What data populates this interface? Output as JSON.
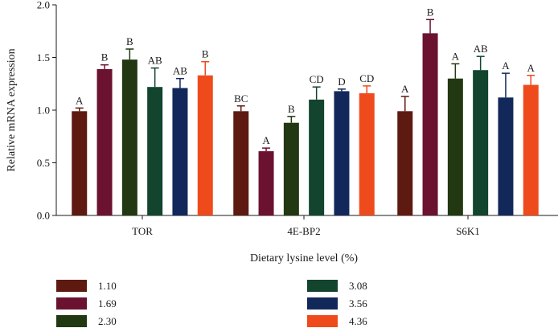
{
  "chart_data": {
    "type": "bar",
    "xlabel": "Dietary lysine level (%)",
    "ylabel": "Relative mRNA expression",
    "ylim": [
      0,
      2.0
    ],
    "yticks": [
      "0.0",
      "0.5",
      "1.0",
      "1.5",
      "2.0"
    ],
    "categories": [
      "TOR",
      "4E-BP2",
      "S6K1"
    ],
    "grid": false,
    "legend_position": "bottom",
    "error_bars": true,
    "series": [
      {
        "name": "1.10",
        "color": "#5e1a10",
        "values": [
          0.99,
          0.99,
          0.99
        ],
        "errors": [
          0.03,
          0.05,
          0.14
        ],
        "labels": [
          "A",
          "BC",
          "A"
        ]
      },
      {
        "name": "1.69",
        "color": "#6b1230",
        "values": [
          1.39,
          0.61,
          1.73
        ],
        "errors": [
          0.04,
          0.03,
          0.13
        ],
        "labels": [
          "B",
          "A",
          "B"
        ]
      },
      {
        "name": "2.30",
        "color": "#223812",
        "values": [
          1.48,
          0.88,
          1.3
        ],
        "errors": [
          0.1,
          0.06,
          0.14
        ],
        "labels": [
          "B",
          "B",
          "A"
        ]
      },
      {
        "name": "3.08",
        "color": "#12442e",
        "values": [
          1.22,
          1.1,
          1.38
        ],
        "errors": [
          0.18,
          0.12,
          0.13
        ],
        "labels": [
          "AB",
          "CD",
          "AB"
        ]
      },
      {
        "name": "3.56",
        "color": "#13285a",
        "values": [
          1.21,
          1.18,
          1.12
        ],
        "errors": [
          0.09,
          0.02,
          0.23
        ],
        "labels": [
          "AB",
          "D",
          "A"
        ]
      },
      {
        "name": "4.36",
        "color": "#ef4a1c",
        "values": [
          1.33,
          1.16,
          1.24
        ],
        "errors": [
          0.13,
          0.07,
          0.09
        ],
        "labels": [
          "B",
          "CD",
          "A"
        ]
      }
    ]
  }
}
